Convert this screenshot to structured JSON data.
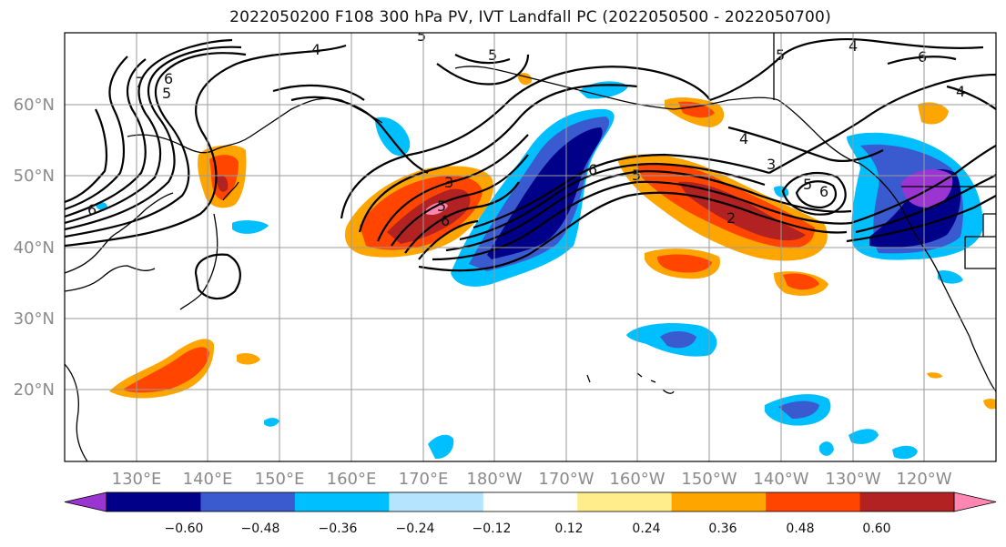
{
  "title": "2022050200 F108 300 hPa PV, IVT Landfall PC (2022050500 - 2022050700)",
  "map": {
    "lat_labels": [
      "60°N",
      "50°N",
      "40°N",
      "30°N",
      "20°N"
    ],
    "lon_labels": [
      "130°E",
      "140°E",
      "150°E",
      "160°E",
      "170°E",
      "180°W",
      "170°W",
      "160°W",
      "150°W",
      "140°W",
      "130°W",
      "120°W"
    ],
    "contour_labels": [
      "7",
      "6",
      "5",
      "4",
      "5",
      "5",
      "6",
      "3",
      "5",
      "6",
      "4",
      "5",
      "6",
      "5",
      "4",
      "6",
      "3",
      "5",
      "2",
      "6",
      "4"
    ]
  },
  "colorbar": {
    "labels": [
      "−0.60",
      "−0.48",
      "−0.36",
      "−0.24",
      "−0.12",
      "0.12",
      "0.24",
      "0.36",
      "0.48",
      "0.60"
    ],
    "colors": [
      "#9a35d1",
      "#000088",
      "#3a5ad0",
      "#00bfff",
      "#b4e4ff",
      "#ffffff",
      "#ffec8b",
      "#ffa500",
      "#ff4500",
      "#b22222",
      "#ff86b0"
    ]
  }
}
